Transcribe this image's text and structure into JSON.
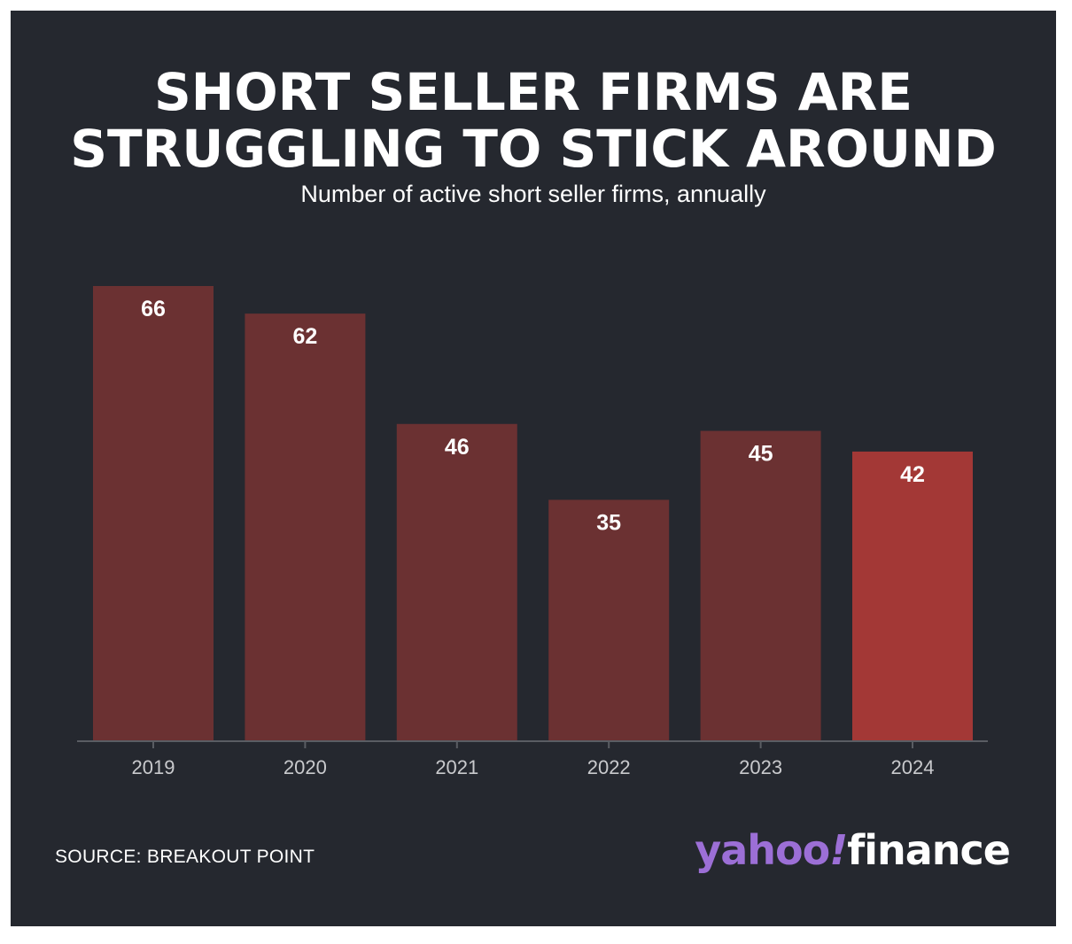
{
  "chart_data": {
    "type": "bar",
    "title": [
      "SHORT SELLER FIRMS ARE",
      "STRUGGLING TO STICK AROUND"
    ],
    "subtitle": "Number of active short seller firms, annually",
    "categories": [
      "2019",
      "2020",
      "2021",
      "2022",
      "2023",
      "2024"
    ],
    "values": [
      66,
      62,
      46,
      35,
      45,
      42
    ],
    "highlight_index": 5,
    "colors": {
      "bar": "#6b3132",
      "highlight": "#a33836",
      "axis": "#5a5d63",
      "tick_label": "#c9cacd",
      "value_label": "#ffffff"
    },
    "ylim": [
      0,
      66
    ],
    "grid": false,
    "legend": "none"
  },
  "footer": {
    "source": "SOURCE: BREAKOUT POINT"
  },
  "logo": {
    "part1": "yahoo",
    "part2": "!",
    "part3": "finance"
  }
}
